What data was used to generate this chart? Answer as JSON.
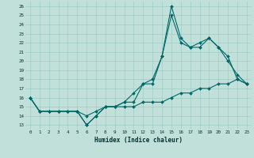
{
  "xlabel": "Humidex (Indice chaleur)",
  "background_color": "#c2e0da",
  "line_color": "#006868",
  "grid_color": "#a0ccc6",
  "xlim": [
    -0.5,
    23.5
  ],
  "ylim": [
    12.5,
    26.5
  ],
  "xticks": [
    0,
    1,
    2,
    3,
    4,
    5,
    6,
    7,
    8,
    9,
    10,
    11,
    12,
    13,
    14,
    15,
    16,
    17,
    18,
    19,
    20,
    21,
    22,
    23
  ],
  "yticks": [
    13,
    14,
    15,
    16,
    17,
    18,
    19,
    20,
    21,
    22,
    23,
    24,
    25,
    26
  ],
  "line1_x": [
    0,
    1,
    2,
    3,
    4,
    5,
    6,
    7,
    8,
    9,
    10,
    11,
    12,
    13,
    14,
    15,
    16,
    17,
    18,
    19,
    20,
    21,
    22,
    23
  ],
  "line1_y": [
    16.0,
    14.5,
    14.5,
    14.5,
    14.5,
    14.5,
    14.0,
    14.5,
    15.0,
    15.0,
    15.0,
    15.0,
    15.5,
    15.5,
    15.5,
    16.0,
    16.5,
    16.5,
    17.0,
    17.0,
    17.5,
    17.5,
    18.0,
    17.5
  ],
  "line2_x": [
    0,
    1,
    2,
    3,
    4,
    5,
    6,
    7,
    8,
    9,
    10,
    11,
    12,
    13,
    14,
    15,
    16,
    17,
    18,
    19,
    20,
    21,
    22,
    23
  ],
  "line2_y": [
    16.0,
    14.5,
    14.5,
    14.5,
    14.5,
    14.5,
    13.0,
    14.0,
    15.0,
    15.0,
    15.5,
    15.5,
    17.5,
    17.5,
    20.5,
    26.0,
    22.5,
    21.5,
    21.5,
    22.5,
    21.5,
    20.0,
    18.5,
    17.5
  ],
  "line3_x": [
    0,
    1,
    2,
    3,
    4,
    5,
    6,
    7,
    8,
    9,
    10,
    11,
    12,
    13,
    14,
    15,
    16,
    17,
    18,
    19,
    20,
    21,
    22,
    23
  ],
  "line3_y": [
    16.0,
    14.5,
    14.5,
    14.5,
    14.5,
    14.5,
    13.0,
    14.0,
    15.0,
    15.0,
    15.5,
    16.5,
    17.5,
    18.0,
    20.5,
    25.0,
    22.0,
    21.5,
    22.0,
    22.5,
    21.5,
    20.5,
    18.0,
    17.5
  ]
}
